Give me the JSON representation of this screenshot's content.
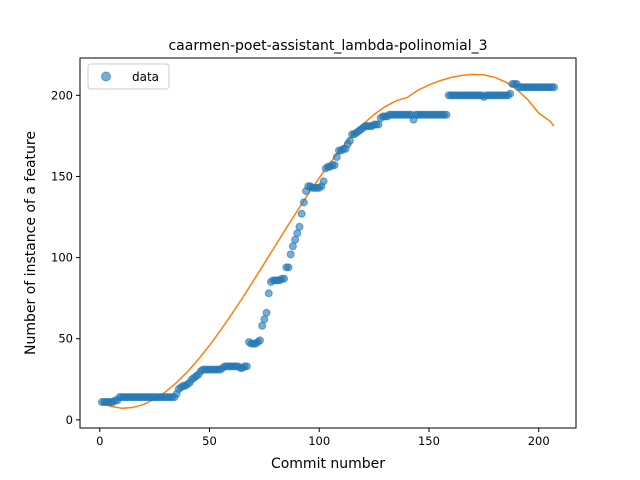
{
  "chart_data": {
    "type": "scatter",
    "title": "caarmen-poet-assistant_lambda-polinomial_3",
    "xlabel": "Commit number",
    "ylabel": "Number of instance of a feature",
    "xlim": [
      -9,
      217
    ],
    "ylim": [
      -5,
      223
    ],
    "xticks": [
      0,
      50,
      100,
      150,
      200
    ],
    "yticks": [
      0,
      50,
      100,
      150,
      200
    ],
    "xtick_labels": [
      "0",
      "50",
      "100",
      "150",
      "200"
    ],
    "ytick_labels": [
      "0",
      "50",
      "100",
      "150",
      "200"
    ],
    "grid": false,
    "legend": {
      "position": "top-left",
      "entries": [
        "data"
      ]
    },
    "colors": {
      "data": "#1f77b4",
      "fit": "#ff7f0e"
    },
    "series": [
      {
        "name": "data",
        "style": "markers",
        "points": [
          [
            1,
            11
          ],
          [
            2,
            11
          ],
          [
            3,
            11
          ],
          [
            4,
            11
          ],
          [
            5,
            11
          ],
          [
            6,
            11
          ],
          [
            7,
            12
          ],
          [
            8,
            12
          ],
          [
            9,
            14
          ],
          [
            10,
            14
          ],
          [
            11,
            14
          ],
          [
            12,
            14
          ],
          [
            13,
            14
          ],
          [
            14,
            14
          ],
          [
            15,
            14
          ],
          [
            16,
            14
          ],
          [
            17,
            14
          ],
          [
            18,
            14
          ],
          [
            19,
            14
          ],
          [
            20,
            14
          ],
          [
            21,
            14
          ],
          [
            22,
            14
          ],
          [
            23,
            14
          ],
          [
            24,
            14
          ],
          [
            25,
            14
          ],
          [
            26,
            14
          ],
          [
            27,
            14
          ],
          [
            28,
            14
          ],
          [
            29,
            14
          ],
          [
            30,
            14
          ],
          [
            31,
            14
          ],
          [
            32,
            14
          ],
          [
            33,
            14
          ],
          [
            34,
            14
          ],
          [
            35,
            16
          ],
          [
            36,
            19
          ],
          [
            37,
            20
          ],
          [
            38,
            21
          ],
          [
            39,
            21
          ],
          [
            40,
            22
          ],
          [
            41,
            23
          ],
          [
            42,
            25
          ],
          [
            43,
            26
          ],
          [
            44,
            27
          ],
          [
            45,
            28
          ],
          [
            46,
            30
          ],
          [
            47,
            31
          ],
          [
            48,
            31
          ],
          [
            49,
            31
          ],
          [
            50,
            31
          ],
          [
            51,
            31
          ],
          [
            52,
            31
          ],
          [
            53,
            31
          ],
          [
            54,
            31
          ],
          [
            55,
            31
          ],
          [
            56,
            32
          ],
          [
            57,
            33
          ],
          [
            58,
            33
          ],
          [
            59,
            33
          ],
          [
            60,
            33
          ],
          [
            61,
            33
          ],
          [
            62,
            33
          ],
          [
            63,
            33
          ],
          [
            64,
            32
          ],
          [
            65,
            32
          ],
          [
            66,
            33
          ],
          [
            67,
            33
          ],
          [
            68,
            48
          ],
          [
            69,
            47
          ],
          [
            70,
            47
          ],
          [
            71,
            47
          ],
          [
            72,
            48
          ],
          [
            73,
            49
          ],
          [
            74,
            58
          ],
          [
            75,
            62
          ],
          [
            76,
            66
          ],
          [
            77,
            78
          ],
          [
            78,
            85
          ],
          [
            79,
            86
          ],
          [
            80,
            86
          ],
          [
            81,
            86
          ],
          [
            82,
            86
          ],
          [
            83,
            87
          ],
          [
            84,
            87
          ],
          [
            85,
            94
          ],
          [
            86,
            94
          ],
          [
            87,
            102
          ],
          [
            88,
            107
          ],
          [
            89,
            111
          ],
          [
            90,
            115
          ],
          [
            91,
            119
          ],
          [
            92,
            127
          ],
          [
            93,
            134
          ],
          [
            94,
            141
          ],
          [
            95,
            144
          ],
          [
            96,
            144
          ],
          [
            97,
            143
          ],
          [
            98,
            143
          ],
          [
            99,
            143
          ],
          [
            100,
            143
          ],
          [
            101,
            144
          ],
          [
            102,
            147
          ],
          [
            103,
            155
          ],
          [
            104,
            156
          ],
          [
            105,
            156
          ],
          [
            106,
            157
          ],
          [
            107,
            157
          ],
          [
            108,
            162
          ],
          [
            109,
            166
          ],
          [
            110,
            166
          ],
          [
            111,
            167
          ],
          [
            112,
            167
          ],
          [
            113,
            170
          ],
          [
            114,
            172
          ],
          [
            115,
            176
          ],
          [
            116,
            176
          ],
          [
            117,
            177
          ],
          [
            118,
            178
          ],
          [
            119,
            179
          ],
          [
            120,
            180
          ],
          [
            121,
            181
          ],
          [
            122,
            181
          ],
          [
            123,
            181
          ],
          [
            124,
            181
          ],
          [
            125,
            182
          ],
          [
            126,
            182
          ],
          [
            127,
            182
          ],
          [
            128,
            186
          ],
          [
            129,
            187
          ],
          [
            130,
            187
          ],
          [
            131,
            187
          ],
          [
            132,
            188
          ],
          [
            133,
            188
          ],
          [
            134,
            188
          ],
          [
            135,
            188
          ],
          [
            136,
            188
          ],
          [
            137,
            188
          ],
          [
            138,
            188
          ],
          [
            139,
            188
          ],
          [
            140,
            188
          ],
          [
            141,
            188
          ],
          [
            142,
            188
          ],
          [
            143,
            185
          ],
          [
            144,
            188
          ],
          [
            145,
            188
          ],
          [
            146,
            188
          ],
          [
            147,
            188
          ],
          [
            148,
            188
          ],
          [
            149,
            188
          ],
          [
            150,
            188
          ],
          [
            151,
            188
          ],
          [
            152,
            188
          ],
          [
            153,
            188
          ],
          [
            154,
            188
          ],
          [
            155,
            188
          ],
          [
            156,
            188
          ],
          [
            157,
            188
          ],
          [
            158,
            188
          ],
          [
            159,
            200
          ],
          [
            160,
            200
          ],
          [
            161,
            200
          ],
          [
            162,
            200
          ],
          [
            163,
            200
          ],
          [
            164,
            200
          ],
          [
            165,
            200
          ],
          [
            166,
            200
          ],
          [
            167,
            200
          ],
          [
            168,
            200
          ],
          [
            169,
            200
          ],
          [
            170,
            200
          ],
          [
            171,
            200
          ],
          [
            172,
            200
          ],
          [
            173,
            200
          ],
          [
            174,
            200
          ],
          [
            175,
            199
          ],
          [
            176,
            200
          ],
          [
            177,
            200
          ],
          [
            178,
            200
          ],
          [
            179,
            200
          ],
          [
            180,
            200
          ],
          [
            181,
            200
          ],
          [
            182,
            200
          ],
          [
            183,
            200
          ],
          [
            184,
            200
          ],
          [
            185,
            200
          ],
          [
            186,
            200
          ],
          [
            187,
            201
          ],
          [
            188,
            207
          ],
          [
            189,
            207
          ],
          [
            190,
            207
          ],
          [
            191,
            205
          ],
          [
            192,
            205
          ],
          [
            193,
            205
          ],
          [
            194,
            205
          ],
          [
            195,
            205
          ],
          [
            196,
            205
          ],
          [
            197,
            205
          ],
          [
            198,
            205
          ],
          [
            199,
            205
          ],
          [
            200,
            205
          ],
          [
            201,
            205
          ],
          [
            202,
            205
          ],
          [
            203,
            205
          ],
          [
            204,
            205
          ],
          [
            205,
            205
          ],
          [
            206,
            205
          ],
          [
            207,
            205
          ]
        ]
      },
      {
        "style": "line",
        "points": [
          [
            1,
            10.3
          ],
          [
            5,
            8.4
          ],
          [
            10,
            7.2
          ],
          [
            15,
            7.6
          ],
          [
            20,
            9.5
          ],
          [
            25,
            12.8
          ],
          [
            30,
            17.3
          ],
          [
            35,
            23.0
          ],
          [
            40,
            29.7
          ],
          [
            45,
            37.4
          ],
          [
            50,
            45.9
          ],
          [
            55,
            55.1
          ],
          [
            60,
            64.9
          ],
          [
            65,
            75.1
          ],
          [
            70,
            85.7
          ],
          [
            75,
            96.5
          ],
          [
            80,
            107.3
          ],
          [
            85,
            118.2
          ],
          [
            90,
            128.8
          ],
          [
            95,
            139.2
          ],
          [
            100,
            149.1
          ],
          [
            105,
            158.5
          ],
          [
            110,
            167.2
          ],
          [
            115,
            175.2
          ],
          [
            120,
            182.2
          ],
          [
            125,
            188.2
          ],
          [
            130,
            193.0
          ],
          [
            135,
            196.6
          ],
          [
            140,
            198.6
          ],
          [
            145,
            203.2
          ],
          [
            150,
            206.4
          ],
          [
            155,
            209.0
          ],
          [
            160,
            211.0
          ],
          [
            165,
            212.3
          ],
          [
            170,
            212.9
          ],
          [
            175,
            212.6
          ],
          [
            180,
            211.1
          ],
          [
            185,
            208.2
          ],
          [
            190,
            203.7
          ],
          [
            195,
            197.4
          ],
          [
            200,
            189.1
          ],
          [
            205,
            184.3
          ],
          [
            207,
            181.0
          ]
        ]
      }
    ]
  }
}
